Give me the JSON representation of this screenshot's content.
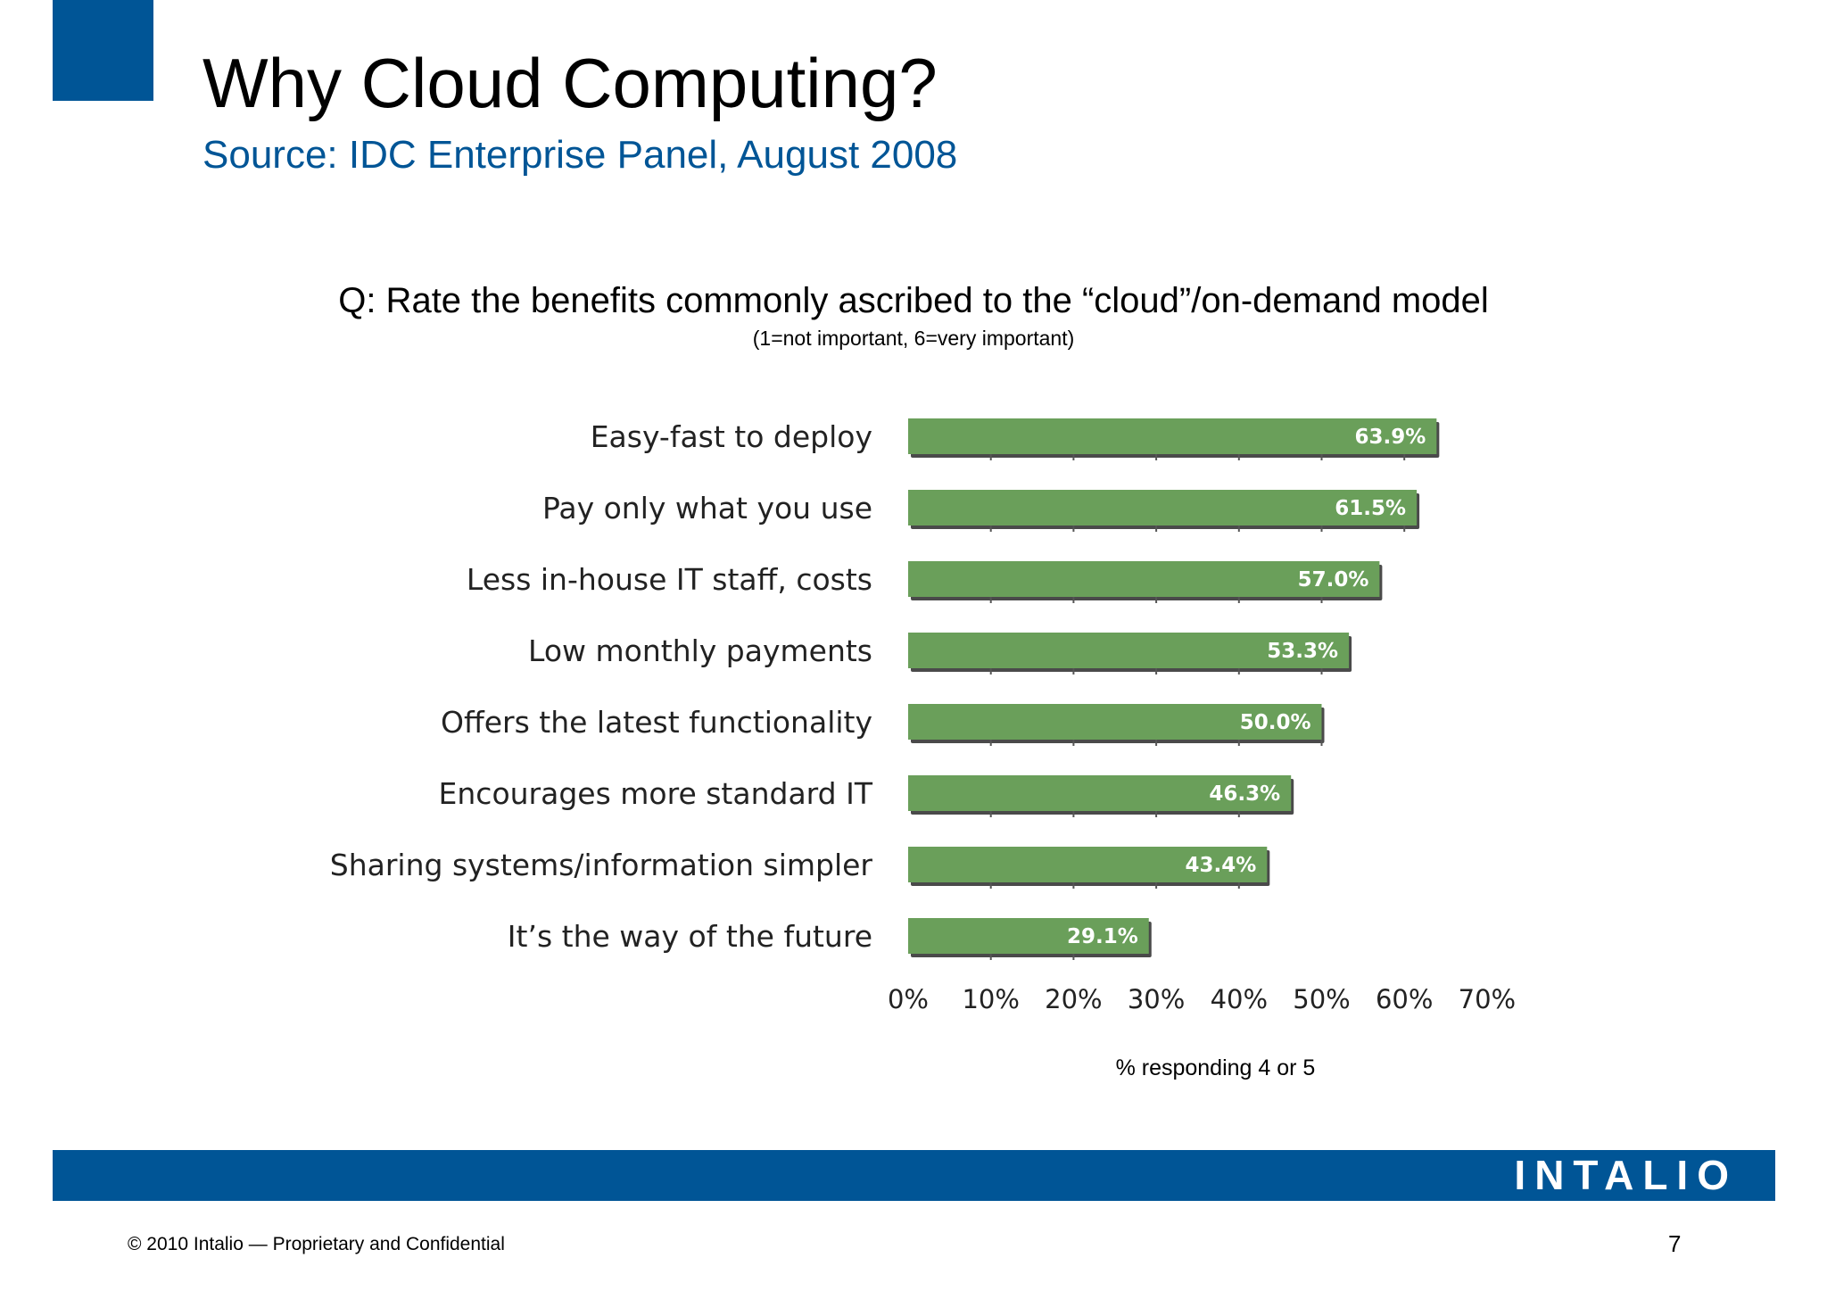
{
  "slide": {
    "title": "Why Cloud Computing?",
    "subtitle": "Source: IDC Enterprise Panel, August 2008",
    "question": "Q: Rate the benefits commonly ascribed to the “cloud”/on-demand model",
    "question_note": "(1=not important, 6=very important)",
    "logo_text": "INTALIO",
    "copyright": "© 2010 Intalio — Proprietary and Confidential",
    "page_number": "7"
  },
  "colors": {
    "brand_blue": "#005596",
    "bar_green": "#6a9f5a",
    "bar_shadow": "#4a4a4a",
    "label_text": "#222222",
    "axis_text": "#222222"
  },
  "chart_data": {
    "type": "bar",
    "orientation": "horizontal",
    "categories": [
      "Easy-fast to deploy",
      "Pay only what you use",
      "Less in-house IT staff, costs",
      "Low monthly payments",
      "Offers the latest functionality",
      "Encourages more standard IT",
      "Sharing systems/information simpler",
      "It’s the way of the future"
    ],
    "values": [
      63.9,
      61.5,
      57.0,
      53.3,
      50.0,
      46.3,
      43.4,
      29.1
    ],
    "value_labels": [
      "63.9%",
      "61.5%",
      "57.0%",
      "53.3%",
      "50.0%",
      "46.3%",
      "43.4%",
      "29.1%"
    ],
    "xticks": [
      0,
      10,
      20,
      30,
      40,
      50,
      60,
      70
    ],
    "xtick_labels": [
      "0%",
      "10%",
      "20%",
      "30%",
      "40%",
      "50%",
      "60%",
      "70%"
    ],
    "xlim": [
      0,
      70
    ],
    "xlabel": "% responding 4 or 5",
    "ylabel": "",
    "grid": false,
    "legend": "none"
  }
}
